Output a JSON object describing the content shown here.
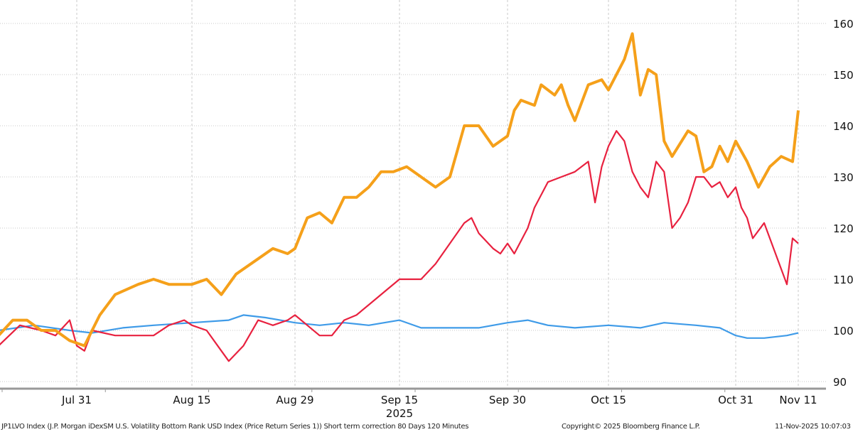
{
  "chart_data": {
    "type": "line",
    "title": "",
    "xlabel": "2025",
    "ylabel": "",
    "ylim": [
      90,
      160
    ],
    "yticks": [
      90,
      100,
      110,
      120,
      130,
      140,
      150,
      160
    ],
    "y_axis_side": "right",
    "xticks": [
      {
        "label": "Jul 31",
        "date": "2025-07-31"
      },
      {
        "label": "Aug 15",
        "date": "2025-08-15"
      },
      {
        "label": "Aug 29",
        "date": "2025-08-29"
      },
      {
        "label": "Sep 15",
        "date": "2025-09-15"
      },
      {
        "label": "Sep 30",
        "date": "2025-09-30"
      },
      {
        "label": "Oct 15",
        "date": "2025-10-15"
      },
      {
        "label": "Oct 31",
        "date": "2025-10-31"
      },
      {
        "label": "Nov 11",
        "date": "2025-11-11"
      }
    ],
    "grid": true,
    "legend": "none",
    "series": [
      {
        "color": "#F5A01A",
        "points": [
          [
            "2025-07-20",
            99
          ],
          [
            "2025-07-22",
            102
          ],
          [
            "2025-07-24",
            102
          ],
          [
            "2025-07-26",
            100
          ],
          [
            "2025-07-28",
            100
          ],
          [
            "2025-07-30",
            98
          ],
          [
            "2025-08-01",
            97
          ],
          [
            "2025-08-03",
            103
          ],
          [
            "2025-08-05",
            107
          ],
          [
            "2025-08-08",
            109
          ],
          [
            "2025-08-10",
            110
          ],
          [
            "2025-08-12",
            109
          ],
          [
            "2025-08-15",
            109
          ],
          [
            "2025-08-17",
            110
          ],
          [
            "2025-08-19",
            107
          ],
          [
            "2025-08-21",
            111
          ],
          [
            "2025-08-24",
            114
          ],
          [
            "2025-08-26",
            116
          ],
          [
            "2025-08-28",
            115
          ],
          [
            "2025-08-29",
            116
          ],
          [
            "2025-08-31",
            122
          ],
          [
            "2025-09-02",
            123
          ],
          [
            "2025-09-04",
            121
          ],
          [
            "2025-09-06",
            126
          ],
          [
            "2025-09-08",
            126
          ],
          [
            "2025-09-10",
            128
          ],
          [
            "2025-09-12",
            131
          ],
          [
            "2025-09-14",
            131
          ],
          [
            "2025-09-16",
            132
          ],
          [
            "2025-09-18",
            130
          ],
          [
            "2025-09-20",
            128
          ],
          [
            "2025-09-22",
            130
          ],
          [
            "2025-09-23",
            135
          ],
          [
            "2025-09-24",
            140
          ],
          [
            "2025-09-26",
            140
          ],
          [
            "2025-09-28",
            136
          ],
          [
            "2025-09-30",
            138
          ],
          [
            "2025-10-01",
            143
          ],
          [
            "2025-10-02",
            145
          ],
          [
            "2025-10-04",
            144
          ],
          [
            "2025-10-05",
            148
          ],
          [
            "2025-10-07",
            146
          ],
          [
            "2025-10-08",
            148
          ],
          [
            "2025-10-09",
            144
          ],
          [
            "2025-10-10",
            141
          ],
          [
            "2025-10-12",
            148
          ],
          [
            "2025-10-14",
            149
          ],
          [
            "2025-10-15",
            147
          ],
          [
            "2025-10-17",
            153
          ],
          [
            "2025-10-18",
            158
          ],
          [
            "2025-10-19",
            146
          ],
          [
            "2025-10-20",
            151
          ],
          [
            "2025-10-21",
            150
          ],
          [
            "2025-10-22",
            137
          ],
          [
            "2025-10-23",
            134
          ],
          [
            "2025-10-25",
            139
          ],
          [
            "2025-10-26",
            138
          ],
          [
            "2025-10-27",
            131
          ],
          [
            "2025-10-28",
            132
          ],
          [
            "2025-10-29",
            136
          ],
          [
            "2025-10-30",
            133
          ],
          [
            "2025-10-31",
            137
          ],
          [
            "2025-11-01",
            135
          ],
          [
            "2025-11-02",
            133
          ],
          [
            "2025-11-04",
            128
          ],
          [
            "2025-11-06",
            132
          ],
          [
            "2025-11-08",
            134
          ],
          [
            "2025-11-10",
            133
          ],
          [
            "2025-11-11",
            143
          ]
        ]
      },
      {
        "color": "#E8213F",
        "points": [
          [
            "2025-07-20",
            97
          ],
          [
            "2025-07-23",
            101
          ],
          [
            "2025-07-26",
            100
          ],
          [
            "2025-07-28",
            99
          ],
          [
            "2025-07-30",
            102
          ],
          [
            "2025-07-31",
            97
          ],
          [
            "2025-08-01",
            96
          ],
          [
            "2025-08-02",
            100
          ],
          [
            "2025-08-05",
            99
          ],
          [
            "2025-08-08",
            99
          ],
          [
            "2025-08-10",
            99
          ],
          [
            "2025-08-12",
            101
          ],
          [
            "2025-08-14",
            102
          ],
          [
            "2025-08-15",
            101
          ],
          [
            "2025-08-17",
            100
          ],
          [
            "2025-08-19",
            96
          ],
          [
            "2025-08-20",
            94
          ],
          [
            "2025-08-22",
            97
          ],
          [
            "2025-08-24",
            102
          ],
          [
            "2025-08-26",
            101
          ],
          [
            "2025-08-28",
            102
          ],
          [
            "2025-08-29",
            103
          ],
          [
            "2025-08-31",
            101
          ],
          [
            "2025-09-02",
            99
          ],
          [
            "2025-09-04",
            99
          ],
          [
            "2025-09-06",
            102
          ],
          [
            "2025-09-08",
            103
          ],
          [
            "2025-09-10",
            105
          ],
          [
            "2025-09-13",
            108
          ],
          [
            "2025-09-15",
            110
          ],
          [
            "2025-09-18",
            110
          ],
          [
            "2025-09-20",
            113
          ],
          [
            "2025-09-22",
            117
          ],
          [
            "2025-09-24",
            121
          ],
          [
            "2025-09-25",
            122
          ],
          [
            "2025-09-26",
            119
          ],
          [
            "2025-09-28",
            116
          ],
          [
            "2025-09-29",
            115
          ],
          [
            "2025-09-30",
            117
          ],
          [
            "2025-10-01",
            115
          ],
          [
            "2025-10-03",
            120
          ],
          [
            "2025-10-04",
            124
          ],
          [
            "2025-10-06",
            129
          ],
          [
            "2025-10-08",
            130
          ],
          [
            "2025-10-10",
            131
          ],
          [
            "2025-10-12",
            133
          ],
          [
            "2025-10-13",
            125
          ],
          [
            "2025-10-14",
            132
          ],
          [
            "2025-10-15",
            136
          ],
          [
            "2025-10-16",
            139
          ],
          [
            "2025-10-17",
            137
          ],
          [
            "2025-10-18",
            131
          ],
          [
            "2025-10-19",
            128
          ],
          [
            "2025-10-20",
            126
          ],
          [
            "2025-10-21",
            133
          ],
          [
            "2025-10-22",
            131
          ],
          [
            "2025-10-23",
            120
          ],
          [
            "2025-10-24",
            122
          ],
          [
            "2025-10-25",
            125
          ],
          [
            "2025-10-26",
            130
          ],
          [
            "2025-10-27",
            130
          ],
          [
            "2025-10-28",
            128
          ],
          [
            "2025-10-29",
            129
          ],
          [
            "2025-10-30",
            126
          ],
          [
            "2025-10-31",
            128
          ],
          [
            "2025-11-01",
            124
          ],
          [
            "2025-11-02",
            122
          ],
          [
            "2025-11-03",
            118
          ],
          [
            "2025-11-05",
            121
          ],
          [
            "2025-11-07",
            115
          ],
          [
            "2025-11-09",
            109
          ],
          [
            "2025-11-10",
            118
          ],
          [
            "2025-11-11",
            117
          ]
        ]
      },
      {
        "color": "#3F9BE8",
        "points": [
          [
            "2025-07-20",
            100
          ],
          [
            "2025-07-25",
            101
          ],
          [
            "2025-07-30",
            100
          ],
          [
            "2025-08-02",
            99.5
          ],
          [
            "2025-08-06",
            100.5
          ],
          [
            "2025-08-10",
            101
          ],
          [
            "2025-08-15",
            101.5
          ],
          [
            "2025-08-20",
            102
          ],
          [
            "2025-08-22",
            103
          ],
          [
            "2025-08-25",
            102.5
          ],
          [
            "2025-08-29",
            101.5
          ],
          [
            "2025-09-02",
            101
          ],
          [
            "2025-09-06",
            101.5
          ],
          [
            "2025-09-10",
            101
          ],
          [
            "2025-09-15",
            102
          ],
          [
            "2025-09-18",
            100.5
          ],
          [
            "2025-09-22",
            100.5
          ],
          [
            "2025-09-26",
            100.5
          ],
          [
            "2025-09-30",
            101.5
          ],
          [
            "2025-10-03",
            102
          ],
          [
            "2025-10-06",
            101
          ],
          [
            "2025-10-10",
            100.5
          ],
          [
            "2025-10-15",
            101
          ],
          [
            "2025-10-19",
            100.5
          ],
          [
            "2025-10-22",
            101.5
          ],
          [
            "2025-10-26",
            101
          ],
          [
            "2025-10-29",
            100.5
          ],
          [
            "2025-10-31",
            99
          ],
          [
            "2025-11-02",
            98.5
          ],
          [
            "2025-11-05",
            98.5
          ],
          [
            "2025-11-09",
            99
          ],
          [
            "2025-11-11",
            99.5
          ]
        ]
      }
    ]
  },
  "footer": {
    "description": "JP1LVO Index (J.P. Morgan iDexSM U.S. Volatility Bottom Rank USD Index (Price Return Series 1)) Short term correction 80 Days 120 Minutes",
    "copyright": "Copyright© 2025 Bloomberg Finance L.P.",
    "timestamp": "11-Nov-2025 10:07:03"
  }
}
